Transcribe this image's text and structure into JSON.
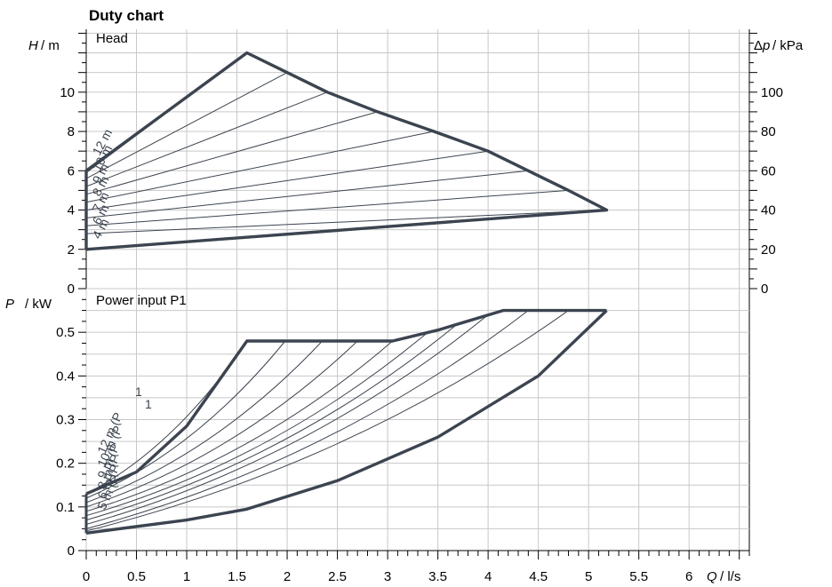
{
  "chart_title": "Duty chart",
  "colors": {
    "grid": "#c8c8c8",
    "curve": "#3c4450",
    "axis": "#000000"
  },
  "chart_data": [
    {
      "type": "line",
      "panel_label": "Head",
      "ylabel_symbol": "H",
      "ylabel_unit": "/ m",
      "y2label_symbol": "Δp",
      "y2label_unit": "/ kPa",
      "xlim": [
        0,
        6.6
      ],
      "ylim": [
        0,
        13.2
      ],
      "y2lim": [
        0,
        132
      ],
      "yticks": [
        "0",
        "2",
        "4",
        "6",
        "8",
        "10"
      ],
      "y2ticks": [
        "0",
        "20",
        "40",
        "60",
        "80",
        "100"
      ],
      "grid": true,
      "boundary": [
        [
          0,
          2
        ],
        [
          5.18,
          4
        ],
        [
          4.8,
          5
        ],
        [
          4.4,
          6
        ],
        [
          4.0,
          7
        ],
        [
          3.46,
          8
        ],
        [
          2.9,
          9
        ],
        [
          2.4,
          10
        ],
        [
          2.0,
          11
        ],
        [
          1.6,
          12
        ],
        [
          0,
          6
        ],
        [
          0,
          2
        ]
      ],
      "series": [
        {
          "name": "12 m",
          "values": [
            [
              0,
              5.9
            ],
            [
              1.6,
              12.0
            ]
          ]
        },
        {
          "name": "11 m",
          "values": [
            [
              0,
              5.6
            ],
            [
              2.0,
              11.0
            ]
          ]
        },
        {
          "name": "10 m",
          "values": [
            [
              0,
              5.2
            ],
            [
              2.4,
              10.0
            ]
          ]
        },
        {
          "name": "9 m",
          "values": [
            [
              0,
              4.8
            ],
            [
              2.9,
              9.0
            ]
          ]
        },
        {
          "name": "8 m",
          "values": [
            [
              0,
              4.4
            ],
            [
              3.46,
              8.0
            ]
          ]
        },
        {
          "name": "7 m",
          "values": [
            [
              0,
              4.0
            ],
            [
              4.0,
              7.0
            ]
          ]
        },
        {
          "name": "6 m",
          "values": [
            [
              0,
              3.6
            ],
            [
              4.4,
              6.0
            ]
          ]
        },
        {
          "name": "5 m",
          "values": [
            [
              0,
              3.2
            ],
            [
              4.8,
              5.0
            ]
          ]
        },
        {
          "name": "4 m",
          "values": [
            [
              0,
              2.8
            ],
            [
              5.18,
              4.0
            ]
          ]
        }
      ]
    },
    {
      "type": "line",
      "panel_label": "Power input P1",
      "ylabel_symbol": "P",
      "ylabel_unit": "/ kW",
      "xlabel_symbol": "Q",
      "xlabel_unit": "/ l/s",
      "xlim": [
        0,
        6.6
      ],
      "ylim": [
        0,
        0.6
      ],
      "xticks": [
        "0",
        "0.5",
        "1",
        "1.5",
        "2",
        "2.5",
        "3",
        "3.5",
        "4",
        "4.5",
        "5",
        "5.5",
        "6"
      ],
      "yticks": [
        "0",
        "0.1",
        "0.2",
        "0.3",
        "0.4",
        "0.5"
      ],
      "grid": true,
      "upper_boundary": [
        [
          0,
          0.13
        ],
        [
          0.5,
          0.18
        ],
        [
          1.0,
          0.285
        ],
        [
          1.6,
          0.48
        ],
        [
          3.05,
          0.48
        ],
        [
          3.5,
          0.505
        ],
        [
          4.15,
          0.55
        ],
        [
          5.18,
          0.55
        ]
      ],
      "lower_boundary": [
        [
          0,
          0.04
        ],
        [
          1.0,
          0.07
        ],
        [
          1.6,
          0.095
        ],
        [
          2.5,
          0.16
        ],
        [
          3.5,
          0.26
        ],
        [
          4.5,
          0.4
        ],
        [
          5.18,
          0.55
        ]
      ],
      "series": [
        {
          "name": "12 m (P1)",
          "values": [
            [
              0,
              0.13
            ],
            [
              1.6,
              0.48
            ]
          ]
        },
        {
          "name": "11 m (P1)",
          "values": [
            [
              0,
              0.12
            ],
            [
              1.98,
              0.48
            ]
          ]
        },
        {
          "name": "10 m (P1)",
          "values": [
            [
              0,
              0.11
            ],
            [
              2.35,
              0.48
            ]
          ]
        },
        {
          "name": "9 m (P1)",
          "values": [
            [
              0,
              0.1
            ],
            [
              2.7,
              0.48
            ]
          ]
        },
        {
          "name": "8 m (P1)",
          "values": [
            [
              0,
              0.09
            ],
            [
              3.05,
              0.48
            ]
          ]
        },
        {
          "name": "7 m (P1)",
          "values": [
            [
              0,
              0.08
            ],
            [
              3.4,
              0.5
            ]
          ]
        },
        {
          "name": "6 m (P1)",
          "values": [
            [
              0,
              0.07
            ],
            [
              3.7,
              0.52
            ]
          ]
        },
        {
          "name": "5 m (P1)",
          "values": [
            [
              0,
              0.06
            ],
            [
              4.0,
              0.54
            ]
          ]
        },
        {
          "name": "4 m (P1)",
          "values": [
            [
              0,
              0.05
            ],
            [
              4.4,
              0.55
            ]
          ]
        },
        {
          "name": "",
          "values": [
            [
              0,
              0.045
            ],
            [
              4.8,
              0.55
            ]
          ]
        }
      ]
    }
  ],
  "power_labels_text": [
    "12 m (P",
    "10 m (P",
    "9 m (P",
    "8 m (P",
    "6 m (P",
    "5 m (P"
  ],
  "power_label_subscripts": [
    "1",
    "1"
  ]
}
